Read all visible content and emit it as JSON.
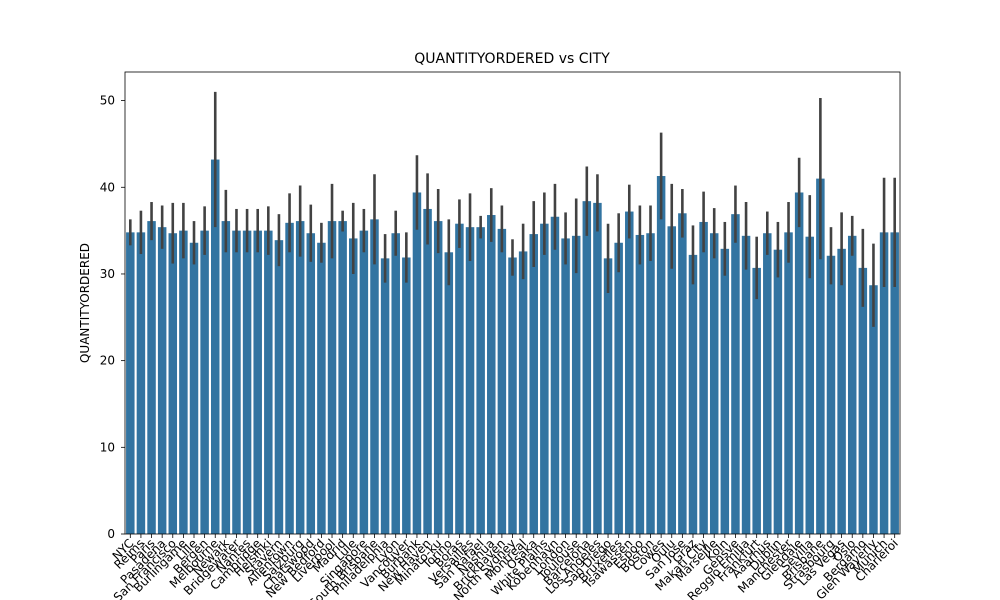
{
  "chart_data": {
    "type": "bar",
    "title": "QUANTITYORDERED vs CITY",
    "xlabel": "CITY",
    "ylabel": "QUANTITYORDERED",
    "categories": [
      "NYC",
      "Reims",
      "Paris",
      "Pasadena",
      "San Francisco",
      "Burlingame",
      "Lille",
      "Bergen",
      "Melbourne",
      "Newark",
      "Bridgewater",
      "Nantes",
      "Cambridge",
      "Helsinki",
      "Stavern",
      "Allentown",
      "Salzburg",
      "Chatswood",
      "New Bedford",
      "Liverpool",
      "Madrid",
      "Lule",
      "Singapore",
      "South Brisbane",
      "Philadelphia",
      "Lyon",
      "Vancouver",
      "Burbank",
      "New Haven",
      "Minato-ku",
      "Torino",
      "Boras",
      "Versailles",
      "San Rafael",
      "Nashua",
      "Brickhaven",
      "North Sydney",
      "Montreal",
      "Osaka",
      "White Plains",
      "Kobenhavn",
      "London",
      "Toulouse",
      "Barcelona",
      "Los Angeles",
      "San Diego",
      "Bruxelles",
      "Tsawassen",
      "Espoo",
      "Boston",
      "Cowes",
      "Oulu",
      "San Jose",
      "Graz",
      "Makati City",
      "Marseille",
      "Koln",
      "Gensve",
      "Reggio Emilia",
      "Frankfurt",
      "Aaarhus",
      "Dublin",
      "Manchester",
      "Glendale",
      "Sevilla",
      "Brisbane",
      "Strasbourg",
      "Las Vegas",
      "Oslo",
      "Bergamo",
      "Glen Waverly",
      "Munich",
      "Charleroi"
    ],
    "values": [
      34.8,
      34.8,
      36.1,
      35.4,
      34.7,
      35.0,
      33.6,
      35.0,
      43.2,
      36.1,
      35.0,
      35.0,
      35.0,
      35.0,
      33.9,
      35.9,
      36.1,
      34.7,
      33.6,
      36.1,
      36.1,
      34.1,
      35.0,
      36.3,
      31.8,
      34.7,
      31.9,
      39.4,
      37.5,
      36.1,
      32.5,
      35.8,
      35.4,
      35.4,
      36.8,
      35.2,
      31.9,
      32.6,
      34.6,
      35.8,
      36.6,
      34.1,
      34.4,
      38.4,
      38.2,
      31.8,
      33.6,
      37.2,
      34.5,
      34.7,
      41.3,
      35.5,
      37.0,
      32.2,
      36.0,
      34.7,
      32.9,
      36.9,
      34.4,
      30.7,
      34.7,
      32.8,
      34.8,
      39.4,
      34.3,
      41.0,
      32.1,
      32.9,
      34.4,
      30.7,
      28.7,
      34.8,
      34.8
    ],
    "errors": [
      1.5,
      2.5,
      2.2,
      2.5,
      3.5,
      3.2,
      2.5,
      2.8,
      7.8,
      3.6,
      2.5,
      2.5,
      2.5,
      2.8,
      3,
      3.4,
      4.1,
      3.3,
      2.3,
      4.3,
      1.2,
      4.1,
      2.5,
      5.2,
      2.8,
      2.6,
      2.9,
      4.3,
      4.1,
      3.7,
      3.8,
      2.8,
      3.9,
      1.3,
      3.1,
      2.7,
      2.1,
      3.2,
      3.8,
      3.6,
      3.8,
      3,
      4.3,
      4,
      3.3,
      4,
      3.4,
      3.1,
      3.4,
      3.2,
      5,
      4.9,
      2.8,
      3.4,
      3.5,
      2.9,
      3.1,
      3.3,
      3.9,
      3.6,
      2.5,
      3.2,
      3.5,
      4,
      4.8,
      9.3,
      3.3,
      4.2,
      2.3,
      4.5,
      4.8,
      6.3,
      6.3
    ],
    "color": "#3274a1",
    "error_color": "#424242",
    "ylim": [
      0,
      53.3
    ],
    "yticks": [
      0,
      10,
      20,
      30,
      40,
      50
    ],
    "grid": false
  }
}
